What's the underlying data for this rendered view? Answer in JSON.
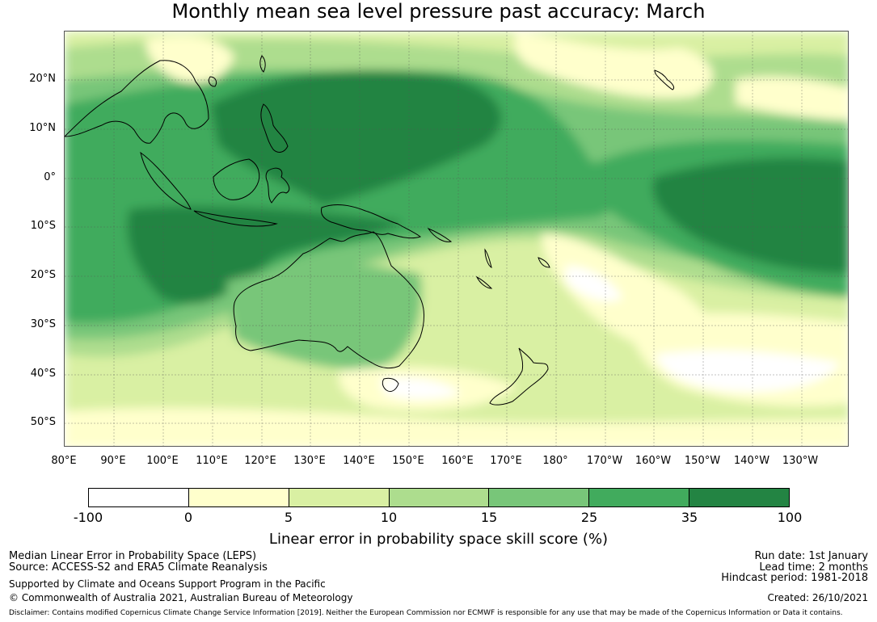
{
  "title": "Monthly mean sea level pressure past accuracy: March",
  "map": {
    "lat_labels": [
      "20°N",
      "10°N",
      "0°",
      "10°S",
      "20°S",
      "30°S",
      "40°S",
      "50°S"
    ],
    "lon_labels": [
      "80°E",
      "90°E",
      "100°E",
      "110°E",
      "120°E",
      "130°E",
      "140°E",
      "150°E",
      "160°E",
      "170°E",
      "180°",
      "170°W",
      "160°W",
      "150°W",
      "140°W",
      "130°W"
    ]
  },
  "legend": {
    "ticks": [
      "-100",
      "0",
      "5",
      "10",
      "15",
      "25",
      "35",
      "100"
    ],
    "colors": [
      "#ffffff",
      "#ffffcc",
      "#d9f0a3",
      "#addd8e",
      "#78c679",
      "#41ab5d",
      "#238443"
    ],
    "label": "Linear error in probability space skill score (%)"
  },
  "footer": {
    "left": {
      "line1": "Median Linear Error in Probability Space (LEPS)",
      "line2": "Source: ACCESS-S2 and ERA5 Climate Reanalysis",
      "line3": "Supported by Climate and Oceans Support Program in the Pacific",
      "line4": "© Commonwealth of Australia 2021, Australian Bureau of Meteorology"
    },
    "right": {
      "run_date": "Run date: 1st January",
      "lead_time": "Lead time: 2 months",
      "hindcast": "Hindcast period: 1981-2018",
      "created": "Created: 26/10/2021"
    },
    "disclaimer": "Disclaimer: Contains modified Copernicus Climate Change Service Information [2019]. Neither the European Commission nor ECMWF is responsible for any use that may be made of the Copernicus Information or Data it contains."
  }
}
